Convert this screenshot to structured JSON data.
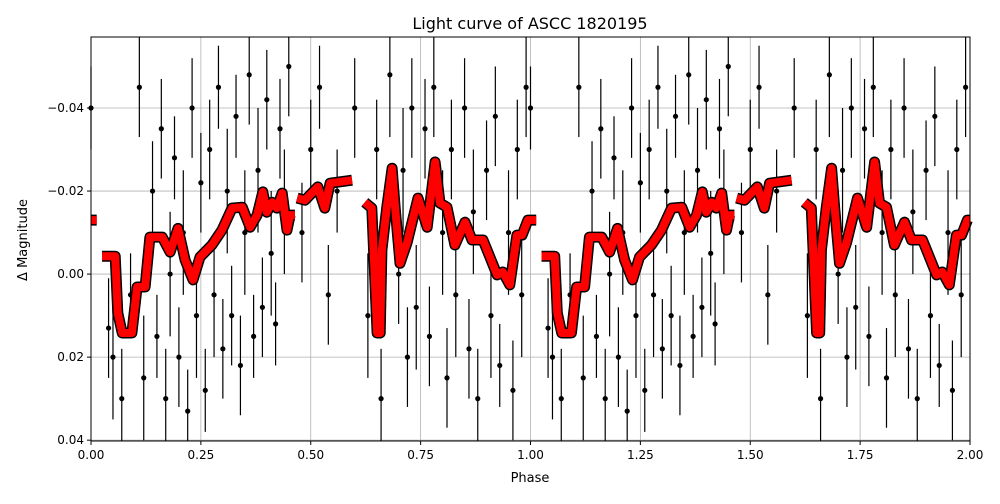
{
  "chart_data": {
    "type": "scatter",
    "title": "Light curve of ASCC 1820195",
    "xlabel": "Phase",
    "ylabel": "Δ Magnitude",
    "xlim": [
      0,
      2
    ],
    "ylim": [
      0.0402,
      -0.0571
    ],
    "y_inverted": true,
    "grid": true,
    "xticks": [
      "0.00",
      "0.25",
      "0.50",
      "0.75",
      "1.00",
      "1.25",
      "1.50",
      "1.75",
      "2.00"
    ],
    "xtick_values": [
      0,
      0.25,
      0.5,
      0.75,
      1.0,
      1.25,
      1.5,
      1.75,
      2.0
    ],
    "yticks": [
      "−0.04",
      "−0.02",
      "0.00",
      "0.02",
      "0.04"
    ],
    "ytick_values": [
      -0.04,
      -0.02,
      0.0,
      0.02,
      0.04
    ],
    "period_repeats_in_phase": [
      0,
      1
    ],
    "observations": {
      "color": "#000000",
      "note_columns": [
        "phase",
        "delta_mag",
        "error"
      ],
      "points": [
        [
          0.0,
          -0.04,
          0.01
        ],
        [
          0.04,
          0.013,
          0.012
        ],
        [
          0.05,
          0.02,
          0.015
        ],
        [
          0.07,
          0.03,
          0.012
        ],
        [
          0.09,
          0.005,
          0.01
        ],
        [
          0.11,
          -0.045,
          0.012
        ],
        [
          0.12,
          0.025,
          0.015
        ],
        [
          0.14,
          -0.02,
          0.012
        ],
        [
          0.15,
          0.015,
          0.01
        ],
        [
          0.16,
          -0.035,
          0.012
        ],
        [
          0.17,
          0.03,
          0.012
        ],
        [
          0.18,
          0.0,
          0.015
        ],
        [
          0.19,
          -0.028,
          0.01
        ],
        [
          0.2,
          0.02,
          0.012
        ],
        [
          0.21,
          -0.01,
          0.015
        ],
        [
          0.22,
          0.033,
          0.01
        ],
        [
          0.23,
          -0.04,
          0.012
        ],
        [
          0.24,
          0.01,
          0.015
        ],
        [
          0.25,
          -0.022,
          0.012
        ],
        [
          0.26,
          0.028,
          0.01
        ],
        [
          0.27,
          -0.03,
          0.012
        ],
        [
          0.28,
          0.005,
          0.015
        ],
        [
          0.29,
          -0.045,
          0.01
        ],
        [
          0.3,
          0.018,
          0.012
        ],
        [
          0.31,
          -0.02,
          0.015
        ],
        [
          0.32,
          0.01,
          0.012
        ],
        [
          0.33,
          -0.038,
          0.01
        ],
        [
          0.34,
          0.022,
          0.012
        ],
        [
          0.35,
          -0.01,
          0.015
        ],
        [
          0.36,
          -0.048,
          0.012
        ],
        [
          0.37,
          0.015,
          0.01
        ],
        [
          0.38,
          -0.025,
          0.015
        ],
        [
          0.39,
          0.008,
          0.012
        ],
        [
          0.4,
          -0.042,
          0.012
        ],
        [
          0.41,
          -0.005,
          0.015
        ],
        [
          0.42,
          0.012,
          0.01
        ],
        [
          0.43,
          -0.035,
          0.012
        ],
        [
          0.44,
          -0.015,
          0.015
        ],
        [
          0.45,
          -0.05,
          0.012
        ],
        [
          0.48,
          -0.01,
          0.012
        ],
        [
          0.5,
          -0.03,
          0.012
        ],
        [
          0.52,
          -0.045,
          0.01
        ],
        [
          0.54,
          0.005,
          0.012
        ],
        [
          0.56,
          -0.02,
          0.01
        ],
        [
          0.6,
          -0.04,
          0.012
        ],
        [
          0.63,
          0.01,
          0.015
        ],
        [
          0.65,
          -0.03,
          0.012
        ],
        [
          0.66,
          0.03,
          0.012
        ],
        [
          0.68,
          -0.048,
          0.015
        ],
        [
          0.7,
          0.0,
          0.012
        ],
        [
          0.71,
          -0.025,
          0.015
        ],
        [
          0.72,
          0.02,
          0.012
        ],
        [
          0.73,
          -0.04,
          0.012
        ],
        [
          0.74,
          0.008,
          0.015
        ],
        [
          0.76,
          -0.035,
          0.012
        ],
        [
          0.77,
          0.015,
          0.012
        ],
        [
          0.78,
          -0.045,
          0.012
        ],
        [
          0.8,
          -0.01,
          0.015
        ],
        [
          0.81,
          0.025,
          0.012
        ],
        [
          0.82,
          -0.03,
          0.012
        ],
        [
          0.83,
          0.005,
          0.015
        ],
        [
          0.85,
          -0.04,
          0.012
        ],
        [
          0.86,
          0.018,
          0.012
        ],
        [
          0.87,
          -0.015,
          0.015
        ],
        [
          0.88,
          0.03,
          0.012
        ],
        [
          0.9,
          -0.025,
          0.012
        ],
        [
          0.91,
          0.01,
          0.015
        ],
        [
          0.92,
          -0.038,
          0.012
        ],
        [
          0.93,
          0.022,
          0.01
        ],
        [
          0.95,
          -0.01,
          0.015
        ],
        [
          0.96,
          0.028,
          0.012
        ],
        [
          0.97,
          -0.03,
          0.012
        ],
        [
          0.98,
          0.005,
          0.015
        ],
        [
          0.99,
          -0.045,
          0.012
        ]
      ]
    },
    "binned_curve": {
      "color": "#ff0000",
      "edge_color": "#000000",
      "segments": [
        [
          [
            0.0,
            -0.013
          ],
          [
            0.013,
            -0.013
          ]
        ],
        [
          [
            0.025,
            -0.0043
          ],
          [
            0.055,
            -0.0043
          ],
          [
            0.061,
            0.0094
          ],
          [
            0.071,
            0.0142
          ],
          [
            0.093,
            0.0142
          ],
          [
            0.105,
            0.0031
          ],
          [
            0.123,
            0.0031
          ],
          [
            0.134,
            -0.0089
          ],
          [
            0.162,
            -0.0089
          ],
          [
            0.18,
            -0.0053
          ],
          [
            0.198,
            -0.011
          ],
          [
            0.214,
            -0.0034
          ],
          [
            0.232,
            0.0014
          ],
          [
            0.248,
            -0.0041
          ],
          [
            0.275,
            -0.007
          ],
          [
            0.298,
            -0.0106
          ],
          [
            0.321,
            -0.0159
          ],
          [
            0.344,
            -0.0161
          ],
          [
            0.362,
            -0.0113
          ],
          [
            0.378,
            -0.0142
          ],
          [
            0.391,
            -0.0198
          ],
          [
            0.4,
            -0.0149
          ],
          [
            0.412,
            -0.0173
          ],
          [
            0.423,
            -0.0159
          ],
          [
            0.435,
            -0.0195
          ],
          [
            0.446,
            -0.0106
          ],
          [
            0.453,
            -0.0142
          ],
          [
            0.464,
            -0.0142
          ]
        ],
        [
          [
            0.469,
            -0.0183
          ],
          [
            0.487,
            -0.0178
          ],
          [
            0.516,
            -0.021
          ],
          [
            0.532,
            -0.0159
          ],
          [
            0.544,
            -0.0219
          ],
          [
            0.594,
            -0.0226
          ]
        ],
        [
          [
            0.623,
            -0.0173
          ],
          [
            0.639,
            -0.0159
          ],
          [
            0.651,
            0.0142
          ],
          [
            0.658,
            0.0142
          ],
          [
            0.662,
            -0.0058
          ],
          [
            0.673,
            -0.0161
          ],
          [
            0.685,
            -0.0255
          ],
          [
            0.692,
            -0.0161
          ],
          [
            0.703,
            -0.0026
          ],
          [
            0.719,
            -0.0075
          ],
          [
            0.744,
            -0.0183
          ],
          [
            0.765,
            -0.0113
          ],
          [
            0.783,
            -0.027
          ],
          [
            0.794,
            -0.0171
          ],
          [
            0.81,
            -0.0161
          ],
          [
            0.828,
            -0.007
          ],
          [
            0.851,
            -0.0125
          ],
          [
            0.867,
            -0.0082
          ],
          [
            0.892,
            -0.0082
          ],
          [
            0.924,
            0.0002
          ],
          [
            0.937,
            -0.0005
          ],
          [
            0.953,
            0.0026
          ],
          [
            0.969,
            -0.0094
          ],
          [
            0.981,
            -0.0094
          ],
          [
            0.994,
            -0.013
          ],
          [
            1.0,
            -0.013
          ]
        ]
      ]
    }
  }
}
